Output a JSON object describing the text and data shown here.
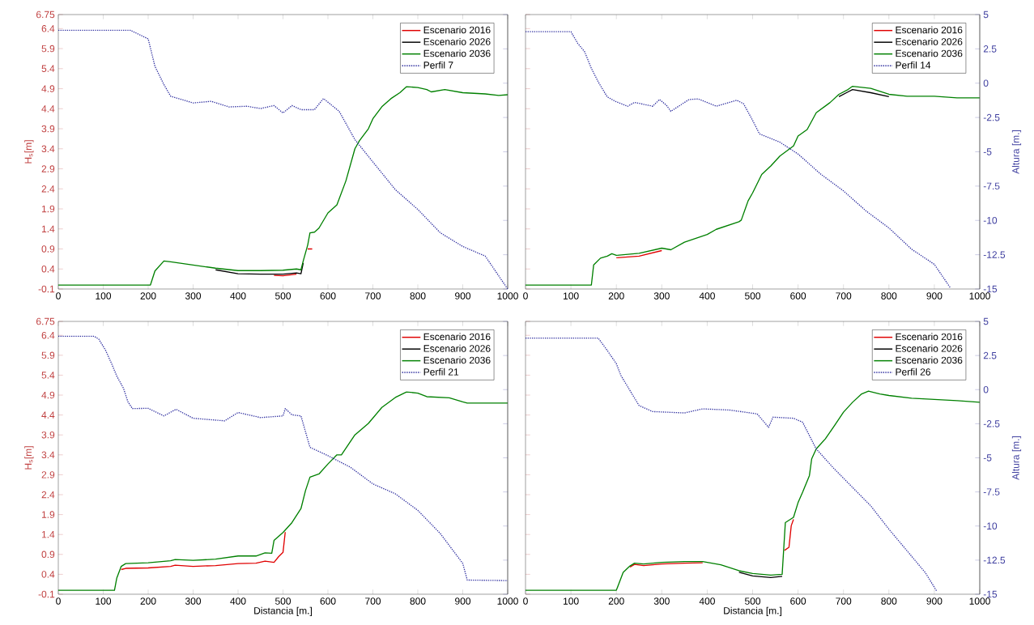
{
  "chart_data": [
    {
      "type": "line",
      "xlim": [
        0,
        1000
      ],
      "xticks": [
        0,
        100,
        200,
        300,
        400,
        500,
        600,
        700,
        800,
        900,
        1000
      ],
      "ylabel": "H$_{s}$[m]",
      "ylim": [
        -0.1,
        6.75
      ],
      "yticks": [
        -0.1,
        0.4,
        0.9,
        1.4,
        1.9,
        2.4,
        2.9,
        3.4,
        3.9,
        4.4,
        4.9,
        5.4,
        5.9,
        6.4,
        6.75
      ],
      "y2lim": [
        -15,
        5
      ],
      "legend": "top right",
      "series": [
        {
          "name": "Escenario 2016",
          "color": "#e00000",
          "x": [
            480,
            500,
            530,
            540,
            545,
            555,
            565
          ],
          "values": [
            0.24,
            0.23,
            0.27,
            null,
            null,
            0.9,
            0.9
          ]
        },
        {
          "name": "Escenario 2026",
          "color": "#000000",
          "x": [
            350,
            400,
            450,
            500,
            530,
            540,
            545
          ],
          "values": [
            0.38,
            0.28,
            0.27,
            0.27,
            0.3,
            0.28,
            0.55
          ]
        },
        {
          "name": "Escenario 2036",
          "color": "#008000",
          "x": [
            0,
            205,
            215,
            235,
            250,
            300,
            350,
            400,
            450,
            500,
            530,
            540,
            545,
            555,
            560,
            570,
            580,
            600,
            620,
            640,
            660,
            670,
            690,
            700,
            720,
            740,
            760,
            775,
            800,
            820,
            830,
            860,
            900,
            950,
            980,
            1000
          ],
          "values": [
            0,
            0,
            0.35,
            0.6,
            0.58,
            0.5,
            0.42,
            0.36,
            0.36,
            0.37,
            0.4,
            0.38,
            0.6,
            1.0,
            1.3,
            1.32,
            1.42,
            1.8,
            2.0,
            2.6,
            3.4,
            3.6,
            3.9,
            4.15,
            4.45,
            4.65,
            4.8,
            4.95,
            4.93,
            4.88,
            4.82,
            4.88,
            4.8,
            4.77,
            4.73,
            4.75
          ]
        },
        {
          "name": "Perfil 7",
          "color": "#3030a0",
          "axis": "y2",
          "line_style": "dotted",
          "x": [
            0,
            160,
            200,
            215,
            235,
            250,
            300,
            340,
            380,
            420,
            450,
            480,
            500,
            520,
            540,
            570,
            590,
            625,
            660,
            700,
            750,
            800,
            850,
            900,
            950,
            1000
          ],
          "values": [
            3.86,
            3.86,
            3.23,
            1.23,
            -0.1,
            -0.95,
            -1.44,
            -1.32,
            -1.73,
            -1.68,
            -1.85,
            -1.63,
            -2.17,
            -1.63,
            -1.93,
            -1.93,
            -1.12,
            -2.05,
            -4.11,
            -5.74,
            -7.76,
            -9.2,
            -10.9,
            -11.9,
            -12.6,
            -15
          ]
        }
      ]
    },
    {
      "type": "line",
      "xlim": [
        0,
        1000
      ],
      "xticks": [
        0,
        100,
        200,
        300,
        400,
        500,
        600,
        700,
        800,
        900,
        1000
      ],
      "y2label": "Altura [m.]",
      "ylim": [
        -0.1,
        6.75
      ],
      "y2lim": [
        -15,
        5
      ],
      "y2ticks": [
        -15,
        -12.5,
        -10,
        -7.5,
        -5,
        -2.5,
        0,
        2.5,
        5
      ],
      "legend": "top right",
      "series": [
        {
          "name": "Escenario 2016",
          "color": "#e00000",
          "x": [
            200,
            250,
            300
          ],
          "values": [
            0.68,
            0.72,
            0.86
          ]
        },
        {
          "name": "Escenario 2026",
          "color": "#000000",
          "x": [
            690,
            710,
            720,
            760,
            800
          ],
          "values": [
            4.7,
            4.82,
            4.88,
            4.8,
            4.7
          ]
        },
        {
          "name": "Escenario 2036",
          "color": "#008000",
          "x": [
            0,
            145,
            150,
            165,
            180,
            190,
            200,
            250,
            300,
            320,
            350,
            400,
            420,
            470,
            475,
            490,
            500,
            520,
            540,
            560,
            590,
            600,
            620,
            640,
            670,
            690,
            710,
            720,
            760,
            800,
            840,
            900,
            950,
            1000
          ],
          "values": [
            0,
            0,
            0.5,
            0.67,
            0.72,
            0.78,
            0.74,
            0.79,
            0.92,
            0.88,
            1.07,
            1.26,
            1.39,
            1.58,
            1.62,
            2.1,
            2.3,
            2.76,
            2.97,
            3.22,
            3.47,
            3.72,
            3.88,
            4.3,
            4.55,
            4.76,
            4.88,
            4.96,
            4.91,
            4.76,
            4.71,
            4.71,
            4.67,
            4.67
          ]
        },
        {
          "name": "Perfil 14",
          "color": "#3030a0",
          "axis": "y2",
          "line_style": "dotted",
          "x": [
            0,
            100,
            115,
            130,
            145,
            160,
            180,
            200,
            225,
            240,
            280,
            295,
            310,
            320,
            360,
            380,
            420,
            465,
            480,
            500,
            515,
            560,
            600,
            650,
            700,
            750,
            800,
            850,
            900,
            935
          ],
          "values": [
            3.75,
            3.75,
            2.9,
            2.3,
            1.08,
            0.1,
            -1.0,
            -1.36,
            -1.68,
            -1.4,
            -1.68,
            -1.19,
            -1.6,
            -2.05,
            -1.19,
            -1.15,
            -1.68,
            -1.24,
            -1.5,
            -2.71,
            -3.69,
            -4.3,
            -5.16,
            -6.63,
            -7.85,
            -9.32,
            -10.55,
            -12.1,
            -13.2,
            -14.9
          ]
        }
      ]
    },
    {
      "type": "line",
      "xlim": [
        0,
        1000
      ],
      "xticks": [
        0,
        100,
        200,
        300,
        400,
        500,
        600,
        700,
        800,
        900,
        1000
      ],
      "xlabel": "Distancia [m.]",
      "ylabel": "H$_{s}$[m]",
      "ylim": [
        -0.1,
        6.75
      ],
      "yticks": [
        -0.1,
        0.4,
        0.9,
        1.4,
        1.9,
        2.4,
        2.9,
        3.4,
        3.9,
        4.4,
        4.9,
        5.4,
        5.9,
        6.4,
        6.75
      ],
      "y2lim": [
        -15,
        5
      ],
      "legend": "top right",
      "series": [
        {
          "name": "Escenario 2016",
          "color": "#e00000",
          "x": [
            140,
            150,
            200,
            250,
            260,
            300,
            350,
            400,
            440,
            460,
            480,
            490,
            500,
            505
          ],
          "values": [
            0.52,
            0.55,
            0.56,
            0.6,
            0.63,
            0.6,
            0.62,
            0.67,
            0.68,
            0.73,
            0.7,
            0.84,
            0.95,
            1.46
          ]
        },
        {
          "name": "Escenario 2026",
          "color": "#000000"
        },
        {
          "name": "Escenario 2036",
          "color": "#008000",
          "x": [
            0,
            125,
            130,
            140,
            150,
            200,
            250,
            260,
            300,
            350,
            400,
            440,
            460,
            475,
            480,
            500,
            520,
            540,
            550,
            560,
            580,
            600,
            620,
            630,
            660,
            690,
            720,
            750,
            775,
            800,
            820,
            870,
            900,
            910,
            1000
          ],
          "values": [
            0,
            0,
            0.3,
            0.6,
            0.67,
            0.69,
            0.74,
            0.77,
            0.75,
            0.78,
            0.86,
            0.86,
            0.94,
            0.93,
            1.25,
            1.45,
            1.7,
            2.05,
            2.5,
            2.84,
            2.92,
            3.17,
            3.4,
            3.4,
            3.9,
            4.19,
            4.59,
            4.84,
            4.98,
            4.95,
            4.86,
            4.83,
            4.73,
            4.7,
            4.7
          ]
        },
        {
          "name": "Perfil 21",
          "color": "#3030a0",
          "axis": "y2",
          "line_style": "dotted",
          "x": [
            0,
            80,
            90,
            105,
            120,
            130,
            145,
            155,
            165,
            200,
            235,
            262,
            300,
            370,
            400,
            450,
            500,
            505,
            520,
            540,
            560,
            600,
            650,
            700,
            750,
            800,
            850,
            900,
            910,
            1000
          ],
          "values": [
            3.91,
            3.91,
            3.7,
            2.9,
            1.8,
            1.0,
            0.1,
            -0.9,
            -1.39,
            -1.37,
            -1.93,
            -1.44,
            -2.1,
            -2.29,
            -1.68,
            -2.05,
            -1.93,
            -1.39,
            -1.85,
            -1.93,
            -4.23,
            -4.84,
            -5.69,
            -6.91,
            -7.64,
            -8.85,
            -10.55,
            -12.74,
            -13.96,
            -14.0
          ]
        }
      ]
    },
    {
      "type": "line",
      "xlim": [
        0,
        1000
      ],
      "xticks": [
        0,
        100,
        200,
        300,
        400,
        500,
        600,
        700,
        800,
        900,
        1000
      ],
      "xlabel": "Distancia [m.]",
      "y2label": "Altura [m.]",
      "ylim": [
        -0.1,
        6.75
      ],
      "y2lim": [
        -15,
        5
      ],
      "y2ticks": [
        -15,
        -12.5,
        -10,
        -7.5,
        -5,
        -2.5,
        0,
        2.5,
        5
      ],
      "legend": "top right",
      "series": [
        {
          "name": "Escenario 2016",
          "color": "#e00000",
          "x": [
            230,
            240,
            260,
            300,
            350,
            390,
            430,
            470,
            500,
            540,
            565,
            570,
            580,
            585,
            590
          ],
          "values": [
            0.58,
            0.65,
            0.62,
            0.66,
            0.68,
            0.69,
            null,
            null,
            null,
            null,
            null,
            1.0,
            1.08,
            1.62,
            1.78
          ]
        },
        {
          "name": "Escenario 2026",
          "color": "#000000",
          "x": [
            470,
            500,
            540,
            565
          ],
          "values": [
            0.45,
            0.36,
            0.32,
            0.35
          ]
        },
        {
          "name": "Escenario 2036",
          "color": "#008000",
          "x": [
            0,
            200,
            205,
            215,
            230,
            240,
            260,
            300,
            350,
            390,
            430,
            470,
            500,
            540,
            565,
            572,
            590,
            600,
            610,
            625,
            630,
            640,
            660,
            680,
            700,
            720,
            740,
            755,
            780,
            800,
            850,
            900,
            950,
            1000
          ],
          "values": [
            0,
            0,
            0.15,
            0.45,
            0.61,
            0.68,
            0.66,
            0.7,
            0.72,
            0.72,
            0.64,
            0.49,
            0.42,
            0.38,
            0.4,
            1.7,
            1.83,
            2.2,
            2.46,
            2.88,
            3.3,
            3.55,
            3.8,
            4.13,
            4.47,
            4.72,
            4.93,
            5.0,
            4.93,
            4.89,
            4.82,
            4.79,
            4.76,
            4.72
          ]
        },
        {
          "name": "Perfil 26",
          "color": "#3030a0",
          "axis": "y2",
          "line_style": "dotted",
          "x": [
            0,
            160,
            180,
            200,
            210,
            230,
            250,
            280,
            350,
            390,
            450,
            510,
            535,
            545,
            590,
            610,
            640,
            680,
            720,
            760,
            800,
            840,
            880,
            905
          ],
          "values": [
            3.78,
            3.78,
            2.87,
            1.9,
            1.04,
            -0.07,
            -1.17,
            -1.61,
            -1.71,
            -1.41,
            -1.5,
            -1.78,
            -2.76,
            -2.02,
            -2.1,
            -2.39,
            -4.35,
            -5.82,
            -7.17,
            -8.52,
            -10.23,
            -11.82,
            -13.41,
            -14.76
          ]
        }
      ]
    }
  ]
}
